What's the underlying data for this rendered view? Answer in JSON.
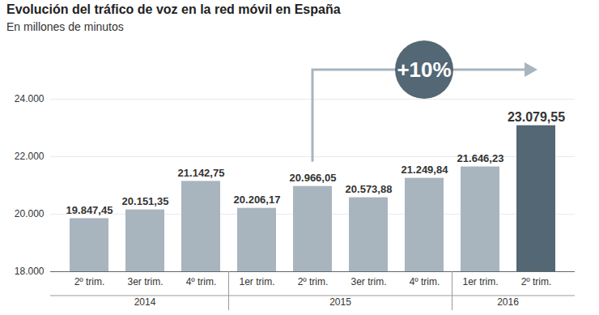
{
  "chart_data": {
    "type": "bar",
    "title": "Evolución del tráfico de voz en la red móvil en España",
    "subtitle": "En millones de minutos",
    "categories": [
      "2º trim.",
      "3er trim.",
      "4º trim.",
      "1er trim.",
      "2º trim.",
      "3er trim.",
      "4º trim.",
      "1er trim.",
      "2º trim."
    ],
    "group_labels": [
      "2014",
      "2014",
      "2014",
      "2015",
      "2015",
      "2015",
      "2015",
      "2016",
      "2016"
    ],
    "values": [
      19847.45,
      20151.35,
      21142.75,
      20206.17,
      20966.05,
      20573.88,
      21249.84,
      21646.23,
      23079.55
    ],
    "value_labels": [
      "19.847,45",
      "20.151,35",
      "21.142,75",
      "20.206,17",
      "20.966,05",
      "20.573,88",
      "21.249,84",
      "21.646,23",
      "23.079,55"
    ],
    "colors": [
      "#a8b5bf",
      "#a8b5bf",
      "#a8b5bf",
      "#a8b5bf",
      "#a8b5bf",
      "#a8b5bf",
      "#a8b5bf",
      "#a8b5bf",
      "#536775"
    ],
    "ylim": [
      18000,
      24000
    ],
    "yticks": [
      {
        "value": 18000,
        "label": "18.000"
      },
      {
        "value": 20000,
        "label": "20.000"
      },
      {
        "value": 22000,
        "label": "22.000"
      },
      {
        "value": 24000,
        "label": "24.000"
      }
    ],
    "grid": true,
    "data_labels": true,
    "annotations": [
      {
        "text": "+10%",
        "from": 4,
        "to": 8
      }
    ]
  }
}
